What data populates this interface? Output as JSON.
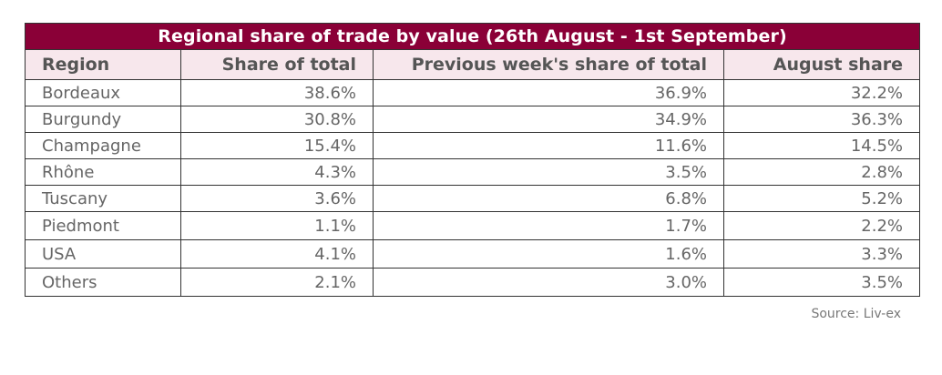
{
  "title": "Regional share of trade by value (26th August - 1st September)",
  "columns": [
    "Region",
    "Share of total",
    "Previous week's share of total",
    "August share"
  ],
  "rows": [
    {
      "region": "Bordeaux",
      "share": "38.6%",
      "prev": "36.9%",
      "august": "32.2%"
    },
    {
      "region": "Burgundy",
      "share": "30.8%",
      "prev": "34.9%",
      "august": "36.3%"
    },
    {
      "region": "Champagne",
      "share": "15.4%",
      "prev": "11.6%",
      "august": "14.5%"
    },
    {
      "region": "Rhône",
      "share": "4.3%",
      "prev": "3.5%",
      "august": "2.8%"
    },
    {
      "region": "Tuscany",
      "share": "3.6%",
      "prev": "6.8%",
      "august": "5.2%"
    },
    {
      "region": "Piedmont",
      "share": "1.1%",
      "prev": "1.7%",
      "august": "2.2%"
    },
    {
      "region": "USA",
      "share": "4.1%",
      "prev": "1.6%",
      "august": "3.3%"
    },
    {
      "region": "Others",
      "share": "2.1%",
      "prev": "3.0%",
      "august": "3.5%"
    }
  ],
  "source": "Source: Liv-ex",
  "colors": {
    "title_bg": "#8a0037",
    "header_bg": "#f7e7ec",
    "text": "#666666"
  }
}
